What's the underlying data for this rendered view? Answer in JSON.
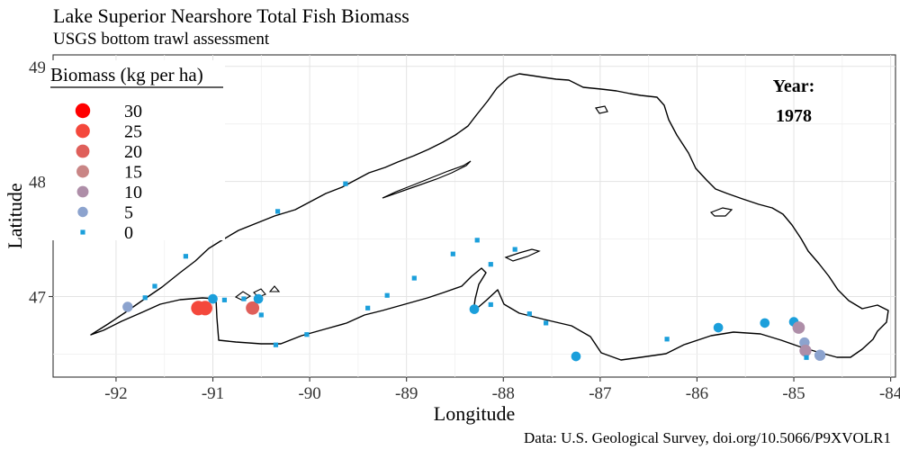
{
  "chart_data": {
    "type": "scatter",
    "title": "Lake Superior Nearshore Total Fish Biomass",
    "subtitle": "USGS bottom trawl assessment",
    "xlabel": "Longitude",
    "ylabel": "Latitude",
    "caption": "Data: U.S. Geological Survey, doi.org/10.5066/P9XVOLR1",
    "xlim": [
      -92.65,
      -83.95
    ],
    "ylim": [
      46.3,
      49.1
    ],
    "x_ticks": [
      -92,
      -91,
      -90,
      -89,
      -88,
      -87,
      -86,
      -85,
      -84
    ],
    "y_ticks": [
      47,
      48,
      49
    ],
    "x_tick_labels": [
      "-92",
      "-91",
      "-90",
      "-89",
      "-88",
      "-87",
      "-86",
      "-85",
      "-84"
    ],
    "y_tick_labels": [
      "47",
      "48",
      "49"
    ],
    "grid": true,
    "legend": {
      "title": "Biomass (kg per ha)",
      "placement": "top-left",
      "entries": [
        {
          "label": "30",
          "value": 30,
          "color": "#ff0000"
        },
        {
          "label": "25",
          "value": 25,
          "color": "#f4483c"
        },
        {
          "label": "20",
          "value": 20,
          "color": "#df5f5a"
        },
        {
          "label": "15",
          "value": 15,
          "color": "#c98585"
        },
        {
          "label": "10",
          "value": 10,
          "color": "#ae8ea8"
        },
        {
          "label": "5",
          "value": 5,
          "color": "#8ca3ce"
        },
        {
          "label": "0",
          "value": 0,
          "color": "#1b9fdb"
        }
      ]
    },
    "annotation": {
      "label": "Year:",
      "value": "1978"
    },
    "series": [
      {
        "points": [
          {
            "lon": -91.88,
            "lat": 46.91,
            "biomass": 5
          },
          {
            "lon": -91.7,
            "lat": 46.99,
            "biomass": 0
          },
          {
            "lon": -91.6,
            "lat": 47.09,
            "biomass": 0
          },
          {
            "lon": -91.28,
            "lat": 47.35,
            "biomass": 0
          },
          {
            "lon": -91.15,
            "lat": 46.9,
            "biomass": 28
          },
          {
            "lon": -91.08,
            "lat": 46.9,
            "biomass": 28
          },
          {
            "lon": -91.0,
            "lat": 46.98,
            "biomass": 3
          },
          {
            "lon": -90.88,
            "lat": 46.97,
            "biomass": 0
          },
          {
            "lon": -90.68,
            "lat": 46.98,
            "biomass": 0
          },
          {
            "lon": -90.59,
            "lat": 46.9,
            "biomass": 20
          },
          {
            "lon": -90.53,
            "lat": 46.98,
            "biomass": 3
          },
          {
            "lon": -90.5,
            "lat": 46.84,
            "biomass": 0
          },
          {
            "lon": -90.35,
            "lat": 46.58,
            "biomass": 0
          },
          {
            "lon": -90.33,
            "lat": 47.74,
            "biomass": 0
          },
          {
            "lon": -90.03,
            "lat": 46.67,
            "biomass": 0
          },
          {
            "lon": -89.63,
            "lat": 47.98,
            "biomass": 0
          },
          {
            "lon": -89.4,
            "lat": 46.9,
            "biomass": 0
          },
          {
            "lon": -89.2,
            "lat": 47.01,
            "biomass": 0
          },
          {
            "lon": -88.92,
            "lat": 47.16,
            "biomass": 0
          },
          {
            "lon": -88.52,
            "lat": 47.37,
            "biomass": 0
          },
          {
            "lon": -88.3,
            "lat": 46.89,
            "biomass": 3
          },
          {
            "lon": -88.27,
            "lat": 47.49,
            "biomass": 0
          },
          {
            "lon": -88.13,
            "lat": 47.28,
            "biomass": 0
          },
          {
            "lon": -88.13,
            "lat": 46.93,
            "biomass": 0
          },
          {
            "lon": -87.88,
            "lat": 47.41,
            "biomass": 0
          },
          {
            "lon": -87.73,
            "lat": 46.85,
            "biomass": 0
          },
          {
            "lon": -87.56,
            "lat": 46.77,
            "biomass": 0
          },
          {
            "lon": -87.25,
            "lat": 46.48,
            "biomass": 3
          },
          {
            "lon": -86.31,
            "lat": 46.63,
            "biomass": 0
          },
          {
            "lon": -85.78,
            "lat": 46.73,
            "biomass": 3
          },
          {
            "lon": -85.3,
            "lat": 46.77,
            "biomass": 3
          },
          {
            "lon": -85.0,
            "lat": 46.78,
            "biomass": 3
          },
          {
            "lon": -84.95,
            "lat": 46.73,
            "biomass": 14
          },
          {
            "lon": -84.89,
            "lat": 46.6,
            "biomass": 5
          },
          {
            "lon": -84.88,
            "lat": 46.53,
            "biomass": 12
          },
          {
            "lon": -84.87,
            "lat": 46.47,
            "biomass": 0
          },
          {
            "lon": -84.73,
            "lat": 46.49,
            "biomass": 8
          }
        ]
      }
    ]
  }
}
